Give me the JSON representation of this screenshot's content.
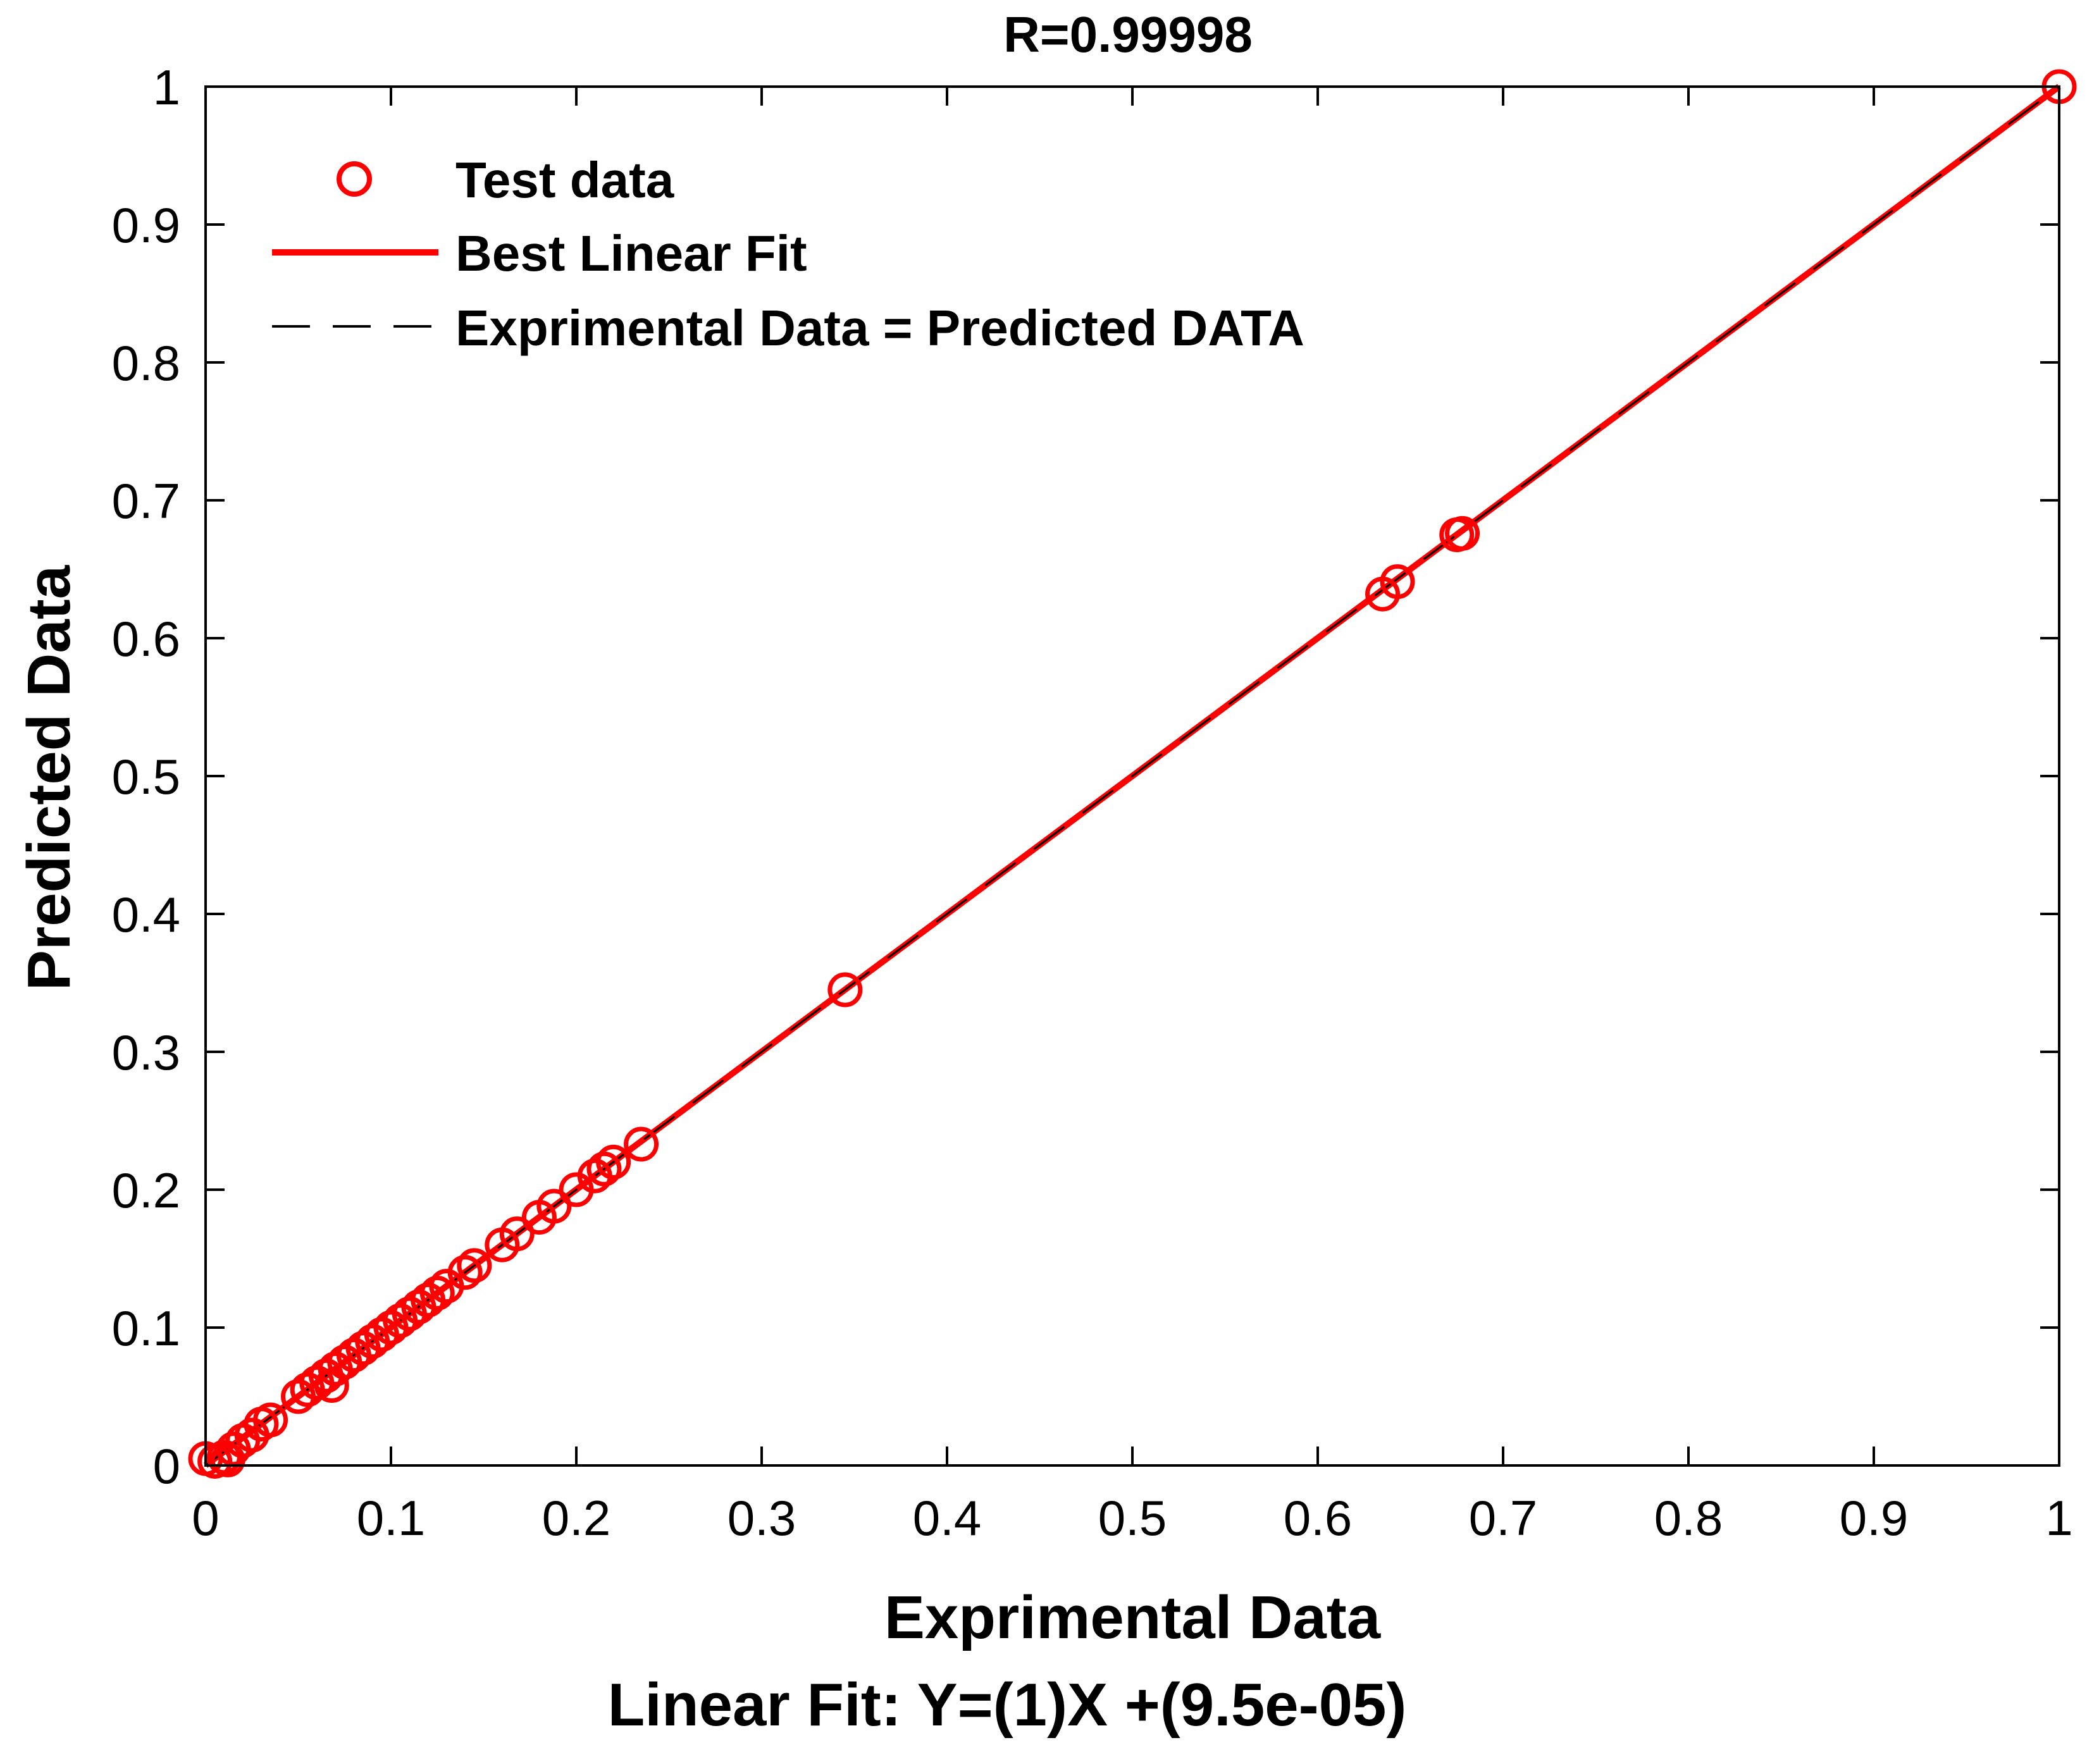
{
  "colors": {
    "accent": "#ff0000",
    "reference_line": "#000000",
    "axes": "#000000",
    "background": "#ffffff"
  },
  "chart_data": {
    "type": "scatter",
    "title": "R=0.99998",
    "xlabel": "Exprimental Data",
    "ylabel": "Predicted Data",
    "subtitle": "Linear Fit: Y=(1)X +(9.5e-05)",
    "xlim": [
      0,
      1
    ],
    "ylim": [
      0,
      1
    ],
    "xticks": [
      "0",
      "0.1",
      "0.2",
      "0.3",
      "0.4",
      "0.5",
      "0.6",
      "0.7",
      "0.8",
      "0.9",
      "1"
    ],
    "yticks": [
      "0",
      "0.1",
      "0.2",
      "0.3",
      "0.4",
      "0.5",
      "0.6",
      "0.7",
      "0.8",
      "0.9",
      "1"
    ],
    "grid": false,
    "legend_position": "top-left",
    "legend": [
      {
        "label": "Test data",
        "marker": "circle-icon",
        "color": "#ff0000"
      },
      {
        "label": "Best Linear Fit",
        "marker": "solid-line",
        "color": "#ff0000"
      },
      {
        "label": "Exprimental Data = Predicted DATA",
        "marker": "dashed-line",
        "color": "#000000"
      }
    ],
    "series": [
      {
        "name": "Test data",
        "marker": "circle",
        "x": [
          0.0,
          0.005,
          0.01,
          0.012,
          0.015,
          0.02,
          0.025,
          0.03,
          0.035,
          0.05,
          0.055,
          0.06,
          0.065,
          0.068,
          0.07,
          0.075,
          0.08,
          0.085,
          0.09,
          0.095,
          0.1,
          0.105,
          0.11,
          0.115,
          0.12,
          0.125,
          0.13,
          0.14,
          0.145,
          0.16,
          0.168,
          0.18,
          0.188,
          0.2,
          0.21,
          0.215,
          0.22,
          0.235,
          0.345,
          0.635,
          0.643,
          0.675,
          0.678,
          1.0
        ],
        "y": [
          0.005,
          0.003,
          0.006,
          0.004,
          0.012,
          0.018,
          0.022,
          0.03,
          0.033,
          0.05,
          0.055,
          0.06,
          0.065,
          0.058,
          0.07,
          0.075,
          0.08,
          0.085,
          0.09,
          0.095,
          0.1,
          0.105,
          0.11,
          0.115,
          0.12,
          0.125,
          0.13,
          0.14,
          0.145,
          0.16,
          0.168,
          0.18,
          0.188,
          0.2,
          0.21,
          0.215,
          0.22,
          0.233,
          0.345,
          0.632,
          0.641,
          0.675,
          0.676,
          1.0
        ]
      },
      {
        "name": "Best Linear Fit",
        "type": "line",
        "x": [
          0,
          1
        ],
        "y": [
          9.5e-05,
          1.000095
        ]
      },
      {
        "name": "Exprimental Data = Predicted DATA",
        "type": "line",
        "style": "dashed",
        "x": [
          0,
          1
        ],
        "y": [
          0,
          1
        ]
      }
    ]
  }
}
